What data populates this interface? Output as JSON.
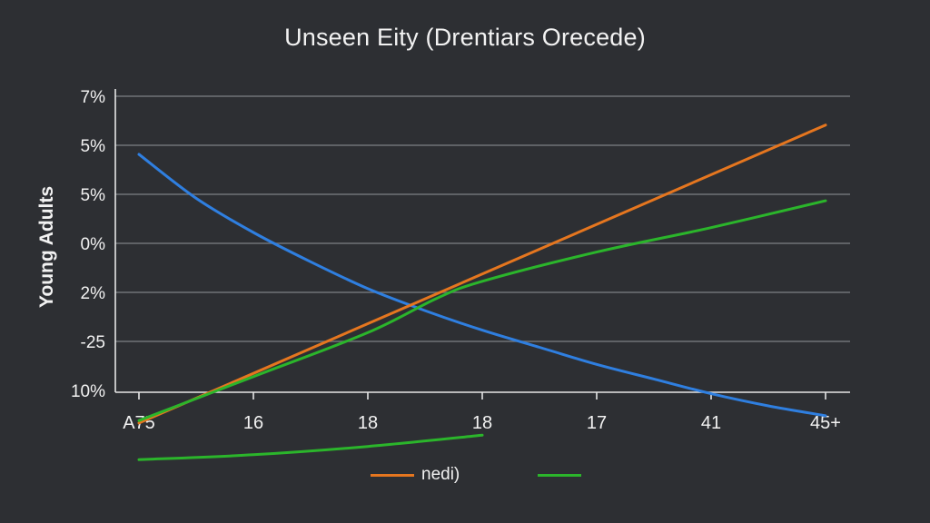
{
  "chart_data": {
    "type": "line",
    "title": "Unseen Eity (Drentiars Orecede)",
    "xlabel": "",
    "ylabel": "Young Adults",
    "categories": [
      "A75",
      "16",
      "18",
      "18",
      "17",
      "41",
      "45+"
    ],
    "y_ticks": [
      "7%",
      "5%",
      "5%",
      "0%",
      "2%",
      "-25",
      "10%"
    ],
    "grid": true,
    "legend_position": "bottom-center",
    "series": [
      {
        "name": "",
        "color": "#2f7fe0",
        "x": [
          0,
          0.5,
          1,
          1.5,
          2,
          2.5,
          3,
          3.5,
          4,
          4.5,
          5,
          5.5,
          6
        ],
        "values": [
          5.8,
          4.9,
          4.2,
          3.6,
          3.05,
          2.6,
          2.2,
          1.85,
          1.5,
          1.2,
          0.9,
          0.65,
          0.45
        ]
      },
      {
        "name": "nedi)",
        "color": "#e5761f",
        "x": [
          0,
          6
        ],
        "values": [
          0.3,
          6.4
        ]
      },
      {
        "name": "",
        "color": "#2bb52b",
        "x": [
          0,
          1,
          2,
          2.6,
          3,
          4,
          5,
          6
        ],
        "values": [
          0.35,
          1.25,
          2.15,
          2.85,
          3.2,
          3.8,
          4.3,
          4.85
        ]
      },
      {
        "name": "",
        "color": "#2bb52b",
        "x": [
          0,
          1,
          2,
          3
        ],
        "values": [
          -0.45,
          -0.35,
          -0.18,
          0.05
        ]
      }
    ],
    "legend": [
      {
        "label": "nedi)",
        "color": "#e5761f"
      },
      {
        "label": "",
        "color": "#2bb52b"
      }
    ]
  }
}
